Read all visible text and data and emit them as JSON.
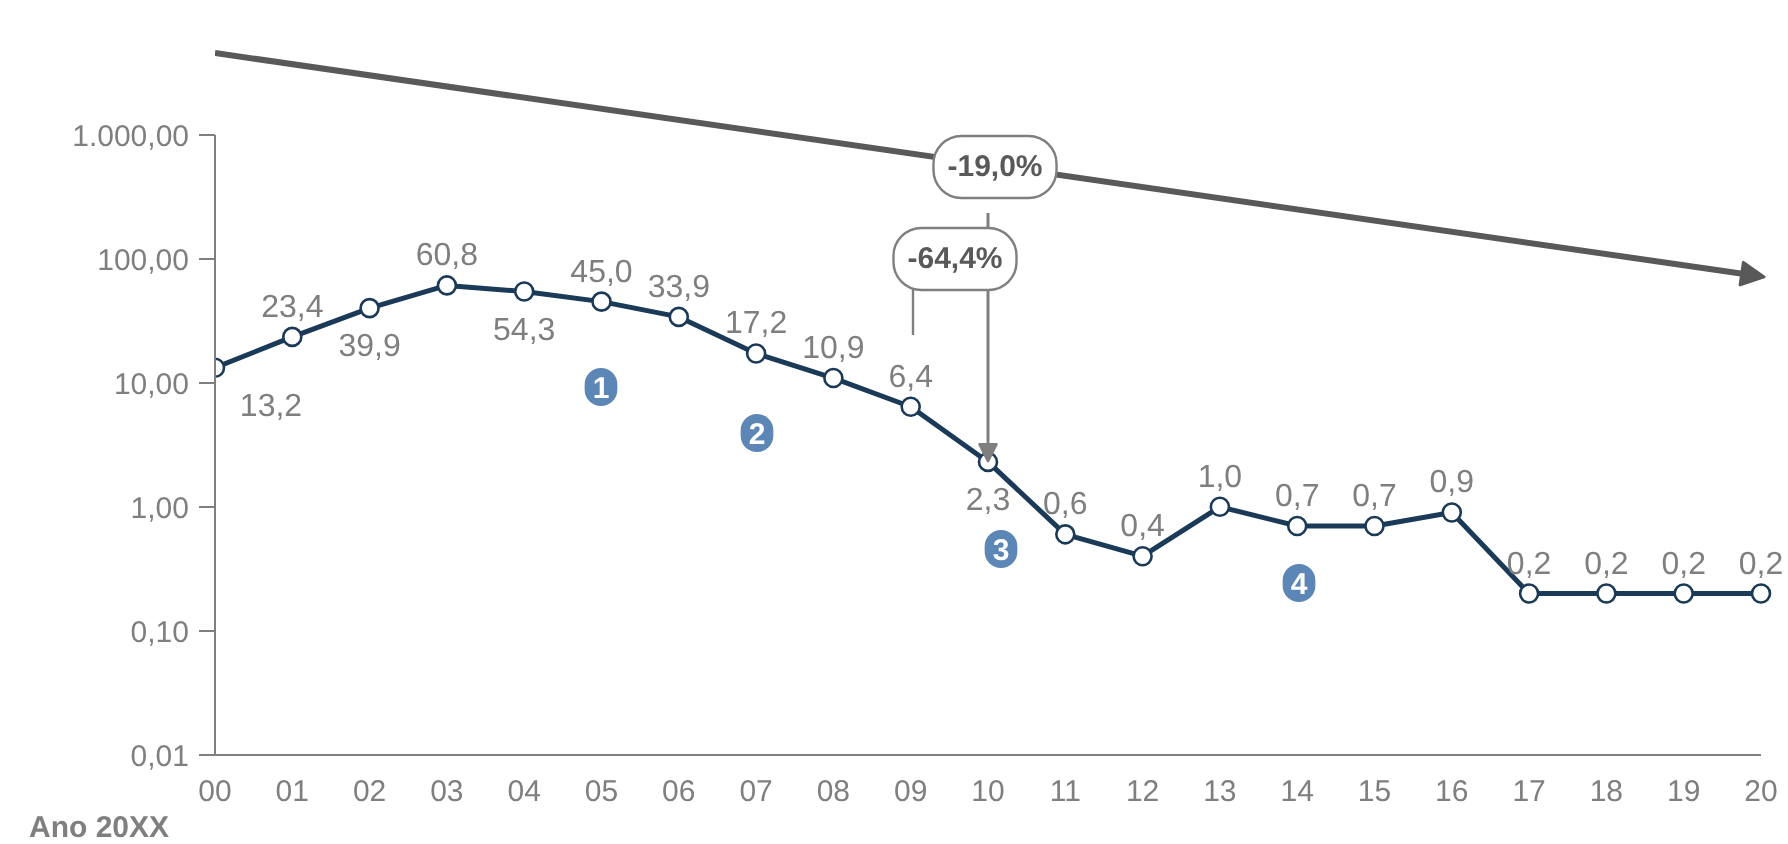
{
  "chart_data": {
    "type": "line",
    "xlabel": "Ano 20XX",
    "categories": [
      "00",
      "01",
      "02",
      "03",
      "04",
      "05",
      "06",
      "07",
      "08",
      "09",
      "10",
      "11",
      "12",
      "13",
      "14",
      "15",
      "16",
      "17",
      "18",
      "19",
      "20"
    ],
    "series": [
      {
        "color": "#1b3a57",
        "values": [
          13.2,
          23.4,
          39.9,
          60.8,
          54.3,
          45.0,
          33.9,
          17.2,
          10.9,
          6.4,
          2.3,
          0.6,
          0.4,
          1.0,
          0.7,
          0.7,
          0.9,
          0.2,
          0.2,
          0.2,
          0.2
        ],
        "value_labels": [
          "13,2",
          "23,4",
          "39,9",
          "60,8",
          "54,3",
          "45,0",
          "33,9",
          "17,2",
          "10,9",
          "6,4",
          "2,3",
          "0,6",
          "0,4",
          "1,0",
          "0,7",
          "0,7",
          "0,9",
          "0,2",
          "0,2",
          "0,2",
          "0,2"
        ]
      }
    ],
    "log": true,
    "ylim": [
      0.01,
      1000
    ],
    "yticks": [
      {
        "value": 0.01,
        "label": "0,01"
      },
      {
        "value": 0.1,
        "label": "0,10"
      },
      {
        "value": 1,
        "label": "1,00"
      },
      {
        "value": 10,
        "label": "10,00"
      },
      {
        "value": 100,
        "label": "100,00"
      },
      {
        "value": 1000,
        "label": "1.000,00"
      }
    ],
    "grid": false,
    "marker": "circle",
    "line_style": "solid",
    "annotations": [
      "-19,0%",
      {
        "text": "-64,4%",
        "x": "10",
        "y": 2.3
      },
      "1",
      "2",
      "3",
      "4"
    ]
  }
}
